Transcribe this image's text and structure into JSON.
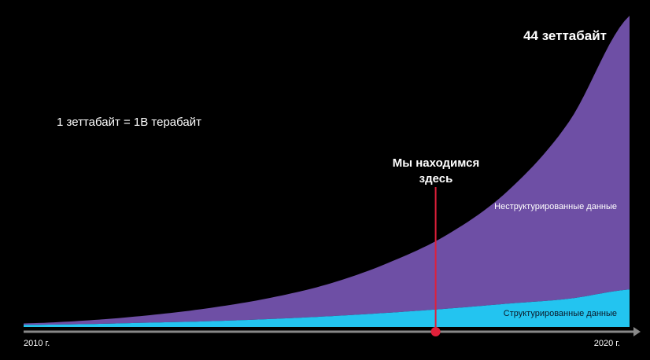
{
  "chart_data": {
    "type": "area",
    "x_start_label": "2010 г.",
    "x_end_label": "2020 г.",
    "total_label": "44 зеттабайт",
    "unit_note": "1 зеттабайт = 1В терабайт",
    "marker_label_line1": "Мы находимся",
    "marker_label_line2": "здесь",
    "marker_position_fraction": 0.68,
    "series": [
      {
        "name": "Структурированные данные",
        "color": "#23c4f0",
        "values": [
          0.3,
          0.4,
          0.6,
          0.8,
          1.1,
          1.5,
          2.0,
          2.6,
          3.3,
          4.0,
          5.3
        ]
      },
      {
        "name": "Неструктурированные данные",
        "color": "#6e4fa5",
        "values": [
          0.2,
          0.5,
          1.0,
          1.8,
          2.9,
          4.5,
          7.0,
          10.5,
          16.0,
          25.0,
          38.7
        ]
      }
    ],
    "ylim": [
      0,
      44
    ],
    "legend": "inline",
    "grid": false,
    "axis_color": "#888888",
    "marker_color": "#e0203a"
  }
}
